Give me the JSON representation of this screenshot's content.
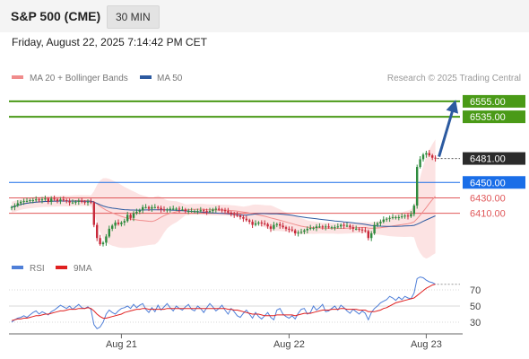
{
  "header": {
    "title": "S&P 500 (CME)",
    "timeframe": "30 MIN",
    "timestamp": "Friday, August 22, 2025 7:14:42 PM CET"
  },
  "legend": {
    "bollinger": "MA 20 + Bollinger Bands",
    "ma50": "MA 50",
    "credit": "Research © 2025 Trading Central",
    "rsi": "RSI",
    "ma9": "9MA"
  },
  "colors": {
    "up": "#2e8b3e",
    "down": "#c8293a",
    "bollinger": "#f08c8c",
    "band_fill": "#fbdada",
    "ma50": "#2c5aa0",
    "resistance": "#4a9a17",
    "pivot": "#1a6ee8",
    "support": "#e0585a",
    "rsi": "#4f7fd8",
    "rsi_ma": "#e02020"
  },
  "chart_data": [
    {
      "type": "candlestick",
      "x_labels": [
        "Aug 21",
        "Aug 22",
        "Aug 23"
      ],
      "y_range": [
        6355,
        6570
      ],
      "last_price": 6481,
      "levels": [
        {
          "value": 6555,
          "label": "6555.00",
          "kind": "resistance"
        },
        {
          "value": 6535,
          "label": "6535.00",
          "kind": "resistance"
        },
        {
          "value": 6481,
          "label": "6481.00",
          "kind": "last"
        },
        {
          "value": 6450,
          "label": "6450.00",
          "kind": "pivot"
        },
        {
          "value": 6430,
          "label": "6430.00",
          "kind": "support"
        },
        {
          "value": 6410,
          "label": "6410.00",
          "kind": "support"
        }
      ],
      "projection": {
        "from": 6481,
        "to": 6555
      },
      "close": [
        6418,
        6420,
        6423,
        6425,
        6426,
        6426,
        6427,
        6427,
        6428,
        6427,
        6428,
        6429,
        6425,
        6429,
        6428,
        6426,
        6428,
        6427,
        6426,
        6424,
        6424,
        6425,
        6426,
        6425,
        6424,
        6425,
        6424,
        6395,
        6378,
        6370,
        6372,
        6380,
        6390,
        6394,
        6398,
        6396,
        6398,
        6400,
        6408,
        6404,
        6410,
        6412,
        6414,
        6418,
        6418,
        6416,
        6418,
        6418,
        6417,
        6415,
        6414,
        6415,
        6416,
        6416,
        6416,
        6415,
        6415,
        6413,
        6413,
        6413,
        6413,
        6413,
        6414,
        6413,
        6412,
        6413,
        6415,
        6416,
        6415,
        6414,
        6413,
        6411,
        6409,
        6408,
        6407,
        6405,
        6403,
        6401,
        6399,
        6395,
        6397,
        6398,
        6397,
        6396,
        6393,
        6390,
        6395,
        6396,
        6394,
        6392,
        6390,
        6389,
        6388,
        6384,
        6385,
        6386,
        6388,
        6390,
        6391,
        6391,
        6393,
        6393,
        6392,
        6393,
        6392,
        6392,
        6392,
        6393,
        6395,
        6394,
        6394,
        6392,
        6390,
        6390,
        6389,
        6388,
        6387,
        6378,
        6384,
        6395,
        6397,
        6399,
        6402,
        6403,
        6404,
        6405,
        6405,
        6405,
        6406,
        6407,
        6406,
        6409,
        6420,
        6470,
        6480,
        6486,
        6488,
        6485,
        6482,
        6481
      ]
    },
    {
      "type": "line",
      "name": "RSI",
      "y_ticks": [
        70,
        50,
        30
      ],
      "y_range": [
        20,
        90
      ],
      "rsi": [
        30,
        33,
        35,
        36,
        38,
        36,
        39,
        42,
        44,
        40,
        43,
        41,
        39,
        43,
        45,
        48,
        51,
        49,
        47,
        50,
        46,
        49,
        52,
        48,
        47,
        49,
        46,
        27,
        22,
        24,
        30,
        40,
        45,
        42,
        40,
        44,
        47,
        48,
        50,
        47,
        52,
        48,
        51,
        53,
        46,
        42,
        48,
        43,
        51,
        45,
        49,
        53,
        48,
        44,
        50,
        47,
        45,
        49,
        52,
        46,
        44,
        50,
        47,
        42,
        48,
        53,
        49,
        44,
        47,
        51,
        45,
        40,
        47,
        43,
        38,
        36,
        41,
        45,
        40,
        35,
        42,
        37,
        34,
        38,
        42,
        36,
        33,
        45,
        47,
        40,
        37,
        35,
        38,
        34,
        41,
        46,
        47,
        40,
        42,
        50,
        45,
        48,
        52,
        43,
        44,
        47,
        50,
        45,
        51,
        48,
        44,
        41,
        46,
        43,
        40,
        44,
        41,
        33,
        42,
        47,
        50,
        54,
        56,
        58,
        62,
        60,
        57,
        61,
        58,
        62,
        60,
        59,
        66,
        84,
        86,
        85,
        82,
        80,
        79,
        77
      ],
      "ma9": [
        32,
        33,
        34,
        34,
        35,
        35,
        36,
        37,
        38,
        38,
        39,
        40,
        40,
        41,
        42,
        43,
        44,
        44,
        45,
        46,
        46,
        46,
        47,
        47,
        47,
        48,
        47,
        44,
        40,
        37,
        35,
        35,
        36,
        37,
        38,
        39,
        40,
        42,
        43,
        44,
        45,
        46,
        46,
        47,
        47,
        46,
        46,
        46,
        46,
        46,
        46,
        47,
        47,
        47,
        47,
        47,
        47,
        47,
        47,
        47,
        47,
        47,
        47,
        47,
        47,
        47,
        47,
        47,
        47,
        47,
        47,
        46,
        46,
        45,
        45,
        44,
        43,
        42,
        41,
        40,
        40,
        40,
        39,
        38,
        38,
        38,
        38,
        39,
        39,
        39,
        39,
        39,
        39,
        38,
        39,
        40,
        41,
        41,
        41,
        42,
        43,
        44,
        45,
        45,
        45,
        46,
        46,
        46,
        47,
        47,
        46,
        46,
        46,
        46,
        45,
        45,
        45,
        43,
        43,
        43,
        44,
        45,
        47,
        48,
        50,
        52,
        54,
        55,
        56,
        57,
        58,
        59,
        60,
        63,
        66,
        69,
        72,
        74,
        76,
        77
      ]
    }
  ]
}
